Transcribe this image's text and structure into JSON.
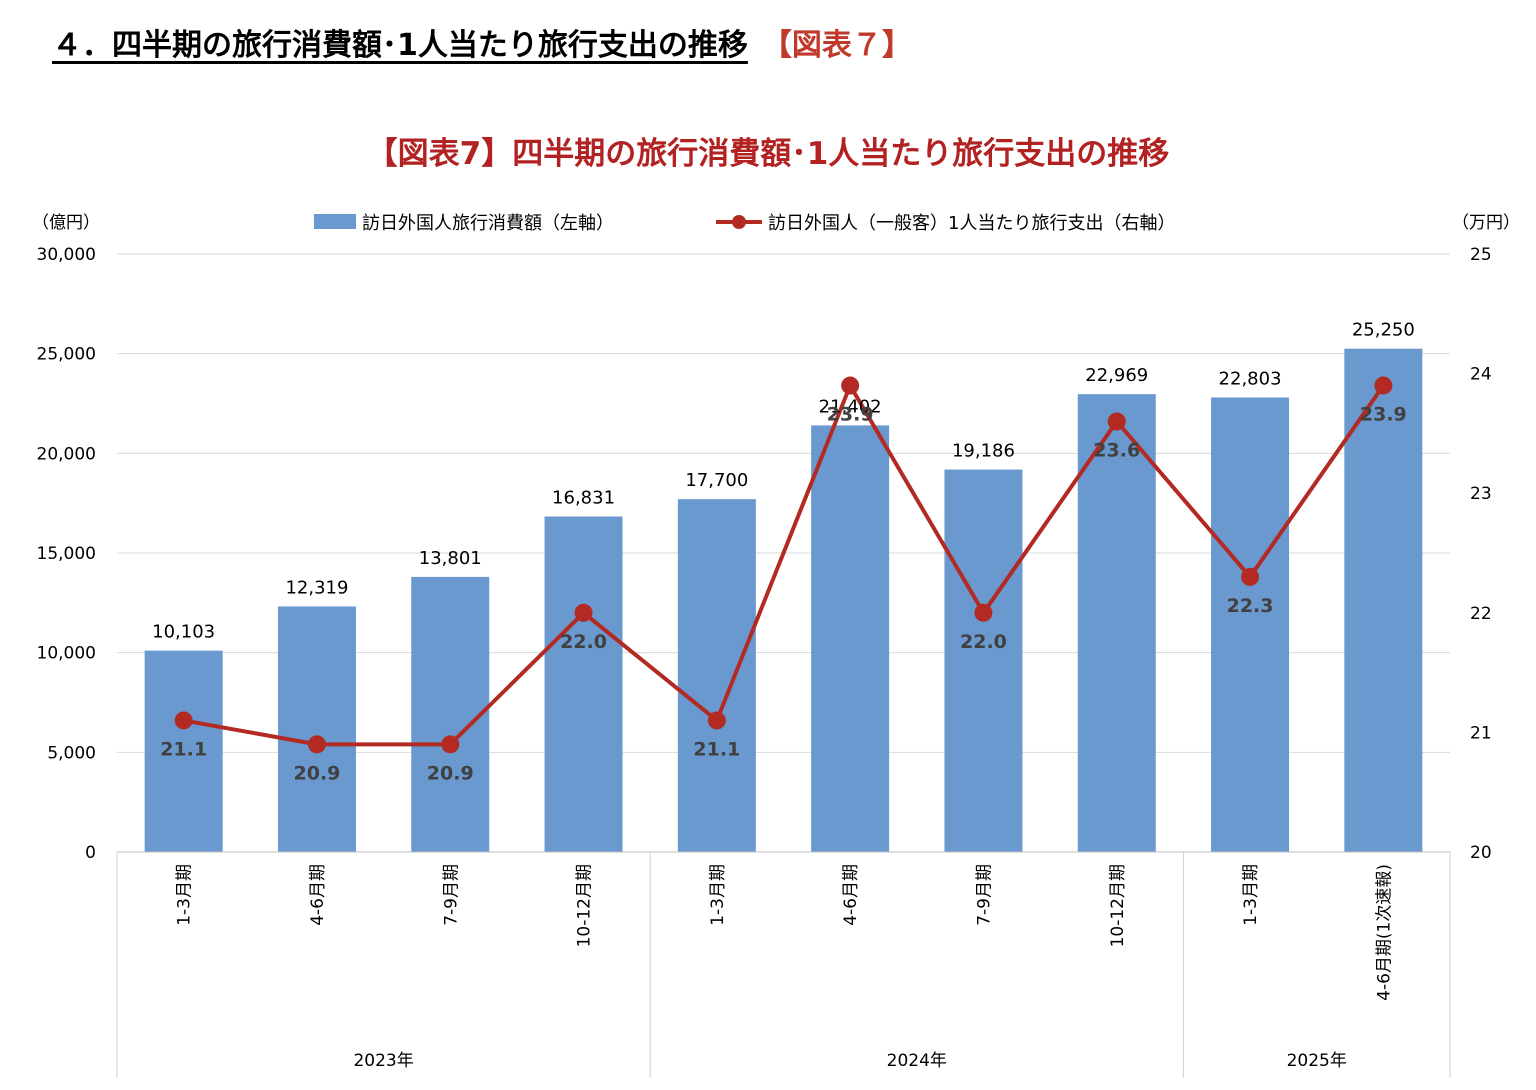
{
  "heading": {
    "main": "４．四半期の旅行消費額･1人当たり旅行支出の推移",
    "tag": "【図表７】"
  },
  "colors": {
    "bar": "#6a99cf",
    "line": "#b22a22",
    "title": "#b22222",
    "heading_tag": "#c0392b"
  },
  "chart_data": {
    "type": "bar",
    "title": "【図表7】四半期の旅行消費額･1人当たり旅行支出の推移",
    "left_unit": "（億円）",
    "right_unit": "（万円）",
    "left_axis": {
      "min": 0,
      "max": 30000,
      "ticks": [
        "0",
        "5,000",
        "10,000",
        "15,000",
        "20,000",
        "25,000",
        "30,000"
      ]
    },
    "right_axis": {
      "min": 20,
      "max": 25,
      "ticks": [
        "20",
        "21",
        "22",
        "23",
        "24",
        "25"
      ]
    },
    "categories": [
      "1-3月期",
      "4-6月期",
      "7-9月期",
      "10-12月期",
      "1-3月期",
      "4-6月期",
      "7-9月期",
      "10-12月期",
      "1-3月期",
      "4-6月期(1次速報)"
    ],
    "years": [
      {
        "label": "2023年",
        "span": 4
      },
      {
        "label": "2024年",
        "span": 4
      },
      {
        "label": "2025年",
        "span": 2
      }
    ],
    "series": [
      {
        "name": "訪日外国人旅行消費額（左軸）",
        "type": "bar",
        "axis": "left",
        "values": [
          10103,
          12319,
          13801,
          16831,
          17700,
          21402,
          19186,
          22969,
          22803,
          25250
        ],
        "labels": [
          "10,103",
          "12,319",
          "13,801",
          "16,831",
          "17,700",
          "21,402",
          "19,186",
          "22,969",
          "22,803",
          "25,250"
        ]
      },
      {
        "name": "訪日外国人（一般客）1人当たり旅行支出（右軸）",
        "type": "line",
        "axis": "right",
        "values": [
          21.1,
          20.9,
          20.9,
          22.0,
          21.1,
          23.9,
          22.0,
          23.6,
          22.3,
          23.9
        ],
        "labels": [
          "21.1",
          "20.9",
          "20.9",
          "22.0",
          "21.1",
          "23.9",
          "22.0",
          "23.6",
          "22.3",
          "23.9"
        ]
      }
    ],
    "grid": true,
    "legend": "top"
  }
}
